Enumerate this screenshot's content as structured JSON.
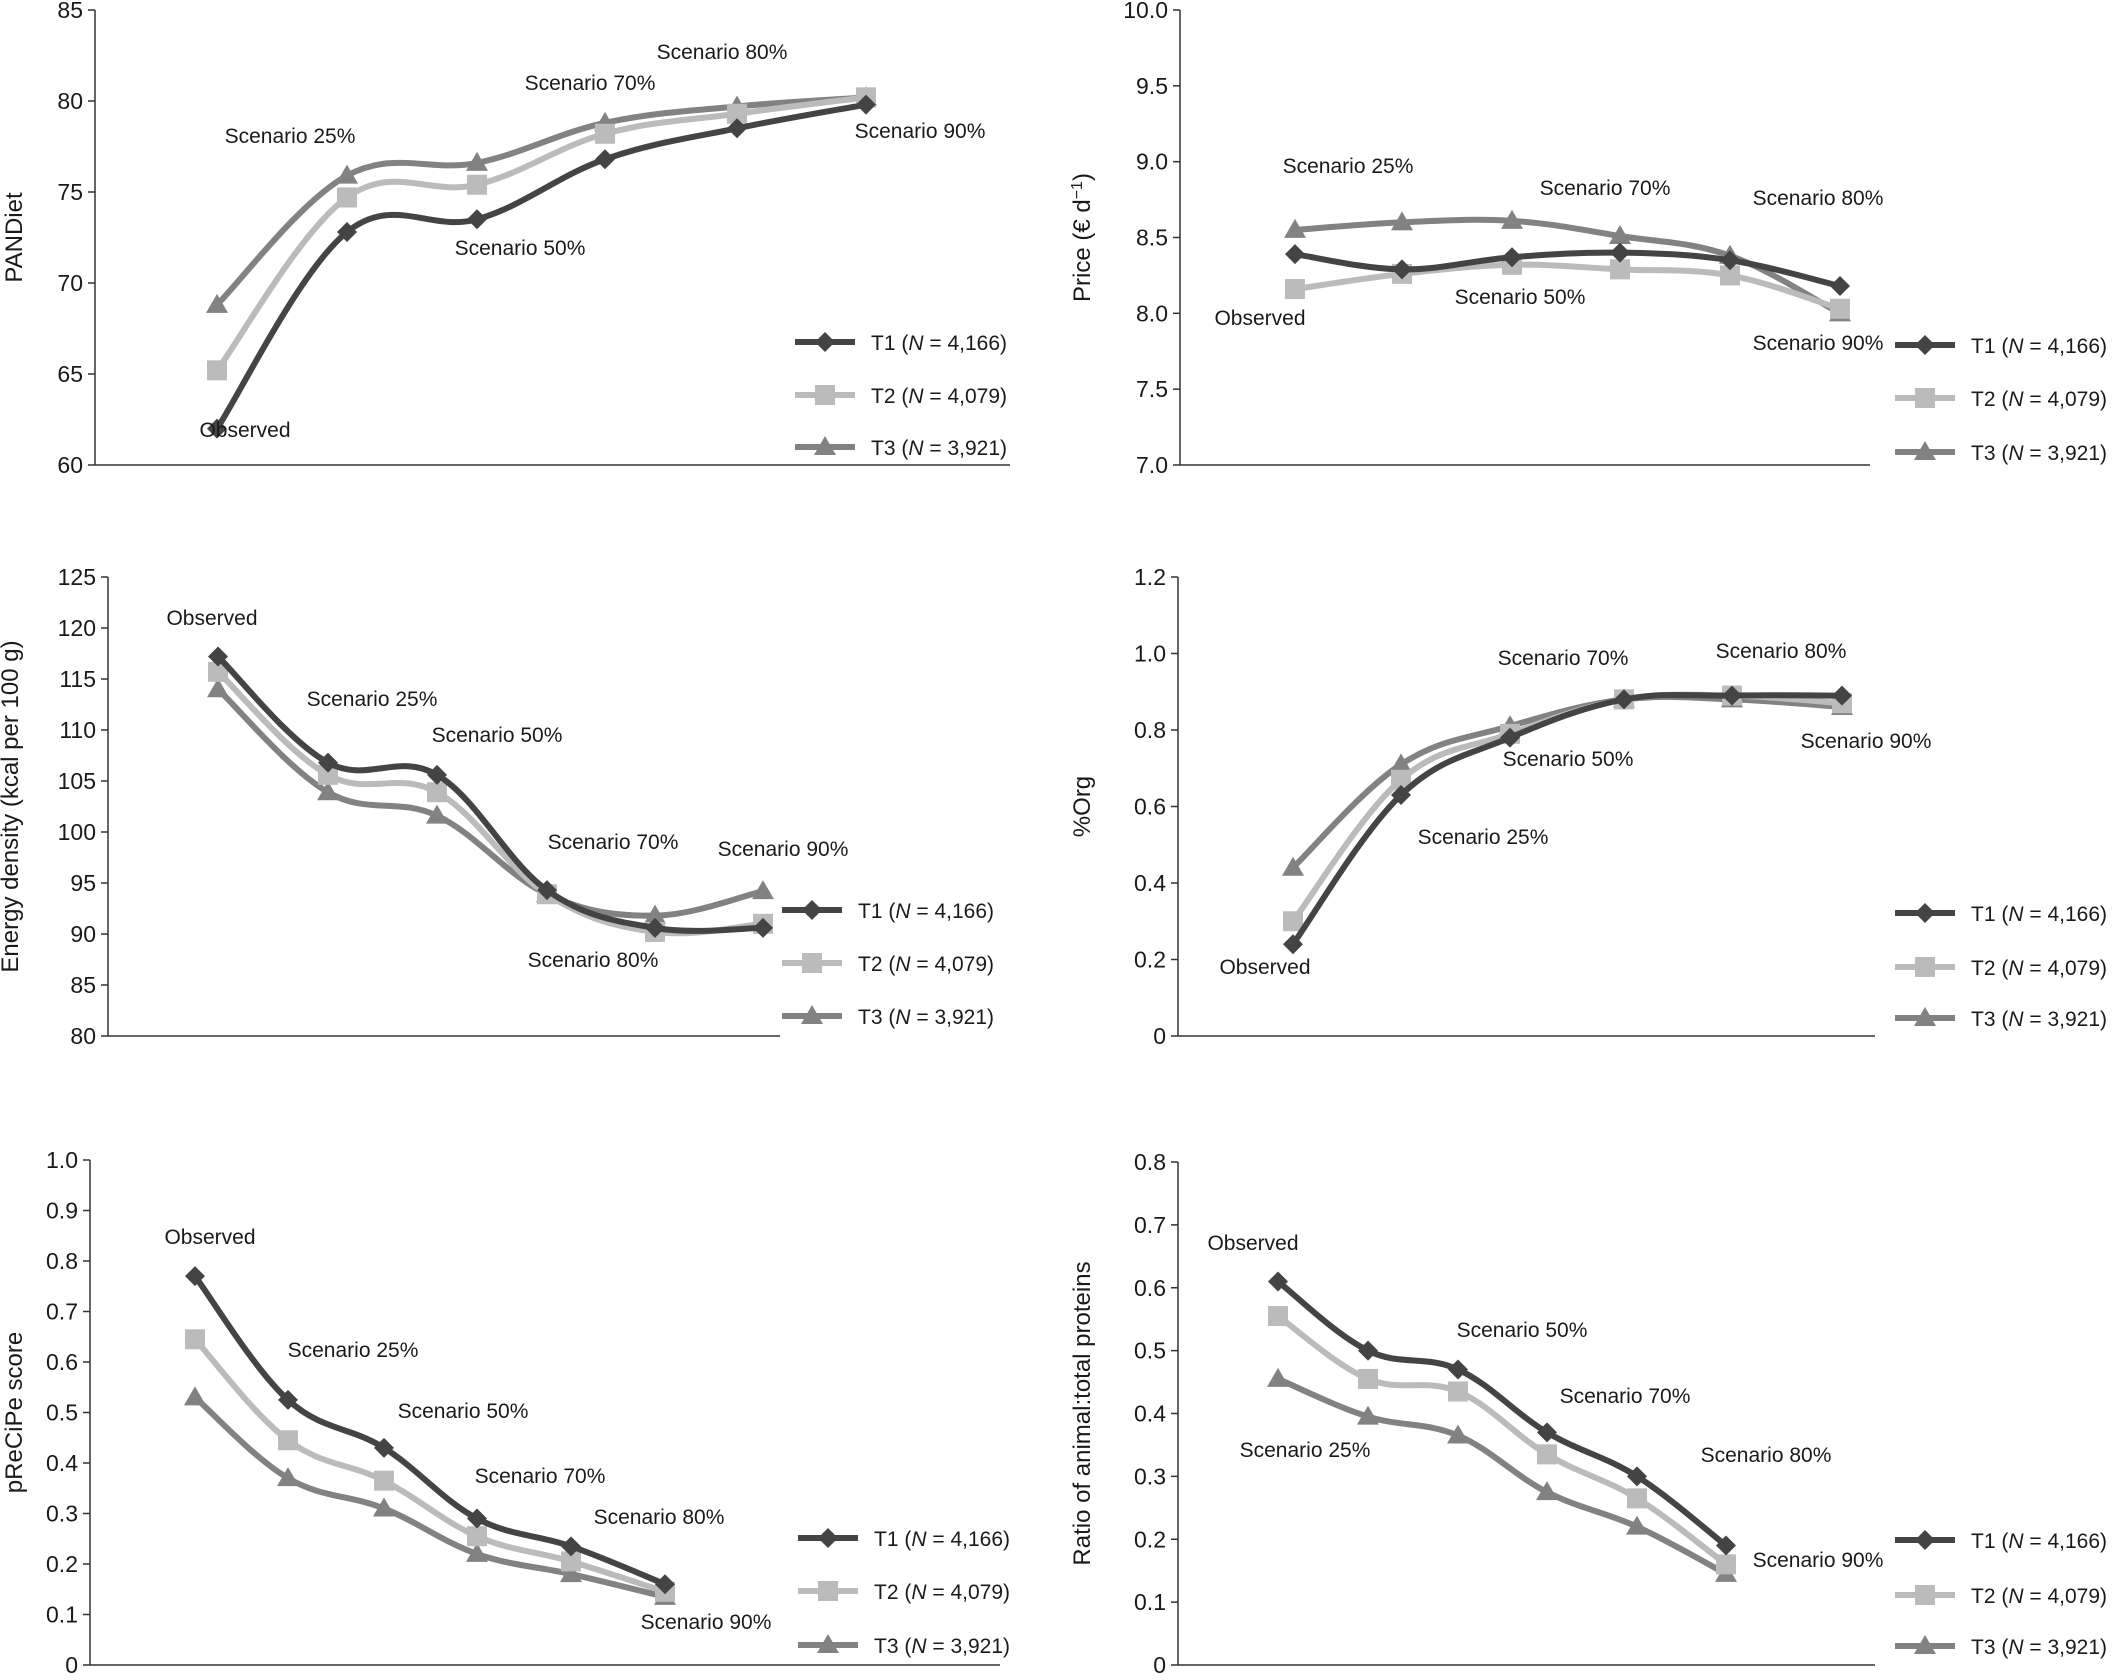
{
  "legend": [
    {
      "label": "T1",
      "n_label": "N",
      "n_value": " = 4,166",
      "color": "#444444",
      "marker": "diamond"
    },
    {
      "label": "T2",
      "n_label": "N",
      "n_value": " = 4,079",
      "color": "#bbbbbb",
      "marker": "square"
    },
    {
      "label": "T3",
      "n_label": "N",
      "n_value": " = 3,921",
      "color": "#828282",
      "marker": "triangle"
    }
  ],
  "chart_data": [
    {
      "type": "line",
      "title": "",
      "xlabel": "",
      "ylabel": "PANDiet",
      "ylim": [
        60,
        85
      ],
      "yticks": [
        60,
        65,
        70,
        75,
        80,
        85
      ],
      "ytick_labels": [
        "60",
        "65",
        "70",
        "75",
        "80",
        "85"
      ],
      "x_count": 7,
      "series": [
        {
          "name": "T1 (N = 4,166)",
          "values": [
            62.0,
            72.8,
            73.5,
            76.8,
            78.5,
            79.8
          ]
        },
        {
          "name": "T2 (N = 4,079)",
          "values": [
            65.2,
            74.7,
            75.4,
            78.2,
            79.3,
            80.2
          ]
        },
        {
          "name": "T3 (N = 3,921)",
          "values": [
            68.8,
            75.9,
            76.6,
            78.8,
            79.7,
            80.2
          ]
        }
      ],
      "annotations": [
        {
          "text": "Observed",
          "x": 1,
          "y": 61.5
        },
        {
          "text": "Scenario 25%",
          "x": 1.7,
          "y": 77.4
        },
        {
          "text": "Scenario 50%",
          "x": 3.9,
          "y": 72.3
        },
        {
          "text": "Scenario 70%",
          "x": 4.85,
          "y": 80.4
        },
        {
          "text": "Scenario 80%",
          "x": 6.1,
          "y": 82.4
        },
        {
          "text": "Scenario 90%",
          "x": 7.4,
          "y": 78.7
        }
      ]
    },
    {
      "type": "line",
      "title": "",
      "xlabel": "",
      "ylabel": "Price (€ d⁻¹)",
      "ylim": [
        7.0,
        10.0
      ],
      "yticks": [
        7.0,
        7.5,
        8.0,
        8.5,
        9.0,
        9.5,
        10.0
      ],
      "ytick_labels": [
        "7.0",
        "7.5",
        "8.0",
        "8.5",
        "9.0",
        "9.5",
        "10.0"
      ],
      "x_count": 6,
      "series": [
        {
          "name": "T1 (N = 4,166)",
          "values": [
            8.39,
            8.29,
            8.37,
            8.4,
            8.35,
            8.18
          ]
        },
        {
          "name": "T2 (N = 4,079)",
          "values": [
            8.16,
            8.26,
            8.32,
            8.29,
            8.25,
            8.03
          ]
        },
        {
          "name": "T3 (N = 3,921)",
          "values": [
            8.55,
            8.6,
            8.61,
            8.51,
            8.38,
            8.0
          ]
        }
      ],
      "annotations": [
        {
          "text": "Observed",
          "x": 1,
          "y": 7.87
        },
        {
          "text": "Scenario 25%",
          "x": 1.5,
          "y": 9.05
        },
        {
          "text": "Scenario 50%",
          "x": 3.0,
          "y": 8.03
        },
        {
          "text": "Scenario 70%",
          "x": 3.9,
          "y": 8.78
        },
        {
          "text": "Scenario 80%",
          "x": 5.8,
          "y": 8.7
        },
        {
          "text": "Scenario 90%",
          "x": 5.8,
          "y": 7.64
        }
      ]
    },
    {
      "type": "line",
      "title": "",
      "xlabel": "",
      "ylabel": "Energy density (kcal per 100 g)",
      "ylim": [
        80,
        125
      ],
      "yticks": [
        80,
        85,
        90,
        95,
        100,
        105,
        110,
        115,
        120,
        125
      ],
      "ytick_labels": [
        "80",
        "85",
        "90",
        "95",
        "100",
        "105",
        "110",
        "115",
        "120",
        "125"
      ],
      "x_count": 6,
      "series": [
        {
          "name": "T1 (N = 4,166)",
          "values": [
            117.2,
            106.8,
            105.6,
            94.3,
            90.6,
            90.6
          ]
        },
        {
          "name": "T2 (N = 4,079)",
          "values": [
            115.7,
            105.6,
            103.9,
            93.9,
            90.2,
            91.0
          ]
        },
        {
          "name": "T3 (N = 3,921)",
          "values": [
            114.0,
            103.9,
            101.6,
            93.9,
            91.8,
            94.2
          ]
        }
      ],
      "annotations": [
        {
          "text": "Observed",
          "x": 1,
          "y": 119.3
        },
        {
          "text": "Scenario 25%",
          "x": 2.5,
          "y": 111.2
        },
        {
          "text": "Scenario 50%",
          "x": 3.6,
          "y": 107.6
        },
        {
          "text": "Scenario 70%",
          "x": 4.7,
          "y": 97.1
        },
        {
          "text": "Scenario 80%",
          "x": 4.7,
          "y": 86.9
        },
        {
          "text": "Scenario 90%",
          "x": 6.2,
          "y": 96.4
        }
      ]
    },
    {
      "type": "line",
      "title": "",
      "xlabel": "",
      "ylabel": "%Org",
      "ylim": [
        0,
        1.2
      ],
      "yticks": [
        0,
        0.2,
        0.4,
        0.6,
        0.8,
        1.0,
        1.2
      ],
      "ytick_labels": [
        "0",
        "0.2",
        "0.4",
        "0.6",
        "0.8",
        "1.0",
        "1.2"
      ],
      "x_count": 6,
      "series": [
        {
          "name": "T1 (N = 4,166)",
          "values": [
            0.24,
            0.63,
            0.78,
            0.88,
            0.89,
            0.89
          ]
        },
        {
          "name": "T2 (N = 4,079)",
          "values": [
            0.3,
            0.67,
            0.79,
            0.88,
            0.89,
            0.87
          ]
        },
        {
          "name": "T3 (N = 3,921)",
          "values": [
            0.44,
            0.71,
            0.81,
            0.88,
            0.88,
            0.86
          ]
        }
      ],
      "annotations": [
        {
          "text": "Observed",
          "x": 1,
          "y": 0.14
        },
        {
          "text": "Scenario 25%",
          "x": 2.2,
          "y": 0.48
        },
        {
          "text": "Scenario 50%",
          "x": 3.4,
          "y": 0.68
        },
        {
          "text": "Scenario 70%",
          "x": 3.5,
          "y": 0.97
        },
        {
          "text": "Scenario 80%",
          "x": 5.8,
          "y": 0.99
        },
        {
          "text": "Scenario 90%",
          "x": 6.2,
          "y": 0.71
        }
      ]
    },
    {
      "type": "line",
      "title": "",
      "xlabel": "",
      "ylabel": "pReCiPe score",
      "ylim": [
        0,
        1.0
      ],
      "yticks": [
        0,
        0.1,
        0.2,
        0.3,
        0.4,
        0.5,
        0.6,
        0.7,
        0.8,
        0.9,
        1.0
      ],
      "ytick_labels": [
        "0",
        "0.1",
        "0.2",
        "0.3",
        "0.4",
        "0.5",
        "0.6",
        "0.7",
        "0.8",
        "0.9",
        "1.0"
      ],
      "x_count": 8,
      "series": [
        {
          "name": "T1 (N = 4,166)",
          "values": [
            0.77,
            0.525,
            0.43,
            0.29,
            0.235,
            0.16
          ]
        },
        {
          "name": "T2 (N = 4,079)",
          "values": [
            0.645,
            0.445,
            0.365,
            0.255,
            0.205,
            0.145
          ]
        },
        {
          "name": "T3 (N = 3,921)",
          "values": [
            0.53,
            0.37,
            0.31,
            0.22,
            0.18,
            0.135
          ]
        }
      ],
      "annotations": [
        {
          "text": "Observed",
          "x": 1,
          "y": 0.82
        },
        {
          "text": "Scenario 25%",
          "x": 2.7,
          "y": 0.61
        },
        {
          "text": "Scenario 50%",
          "x": 3.8,
          "y": 0.48
        },
        {
          "text": "Scenario 70%",
          "x": 4.9,
          "y": 0.35
        },
        {
          "text": "Scenario 80%",
          "x": 6.05,
          "y": 0.27
        },
        {
          "text": "Scenario 90%",
          "x": 6.4,
          "y": 0.06
        }
      ]
    },
    {
      "type": "line",
      "title": "",
      "xlabel": "",
      "ylabel": "Ratio of animal:total proteins",
      "ylim": [
        0,
        0.8
      ],
      "yticks": [
        0,
        0.1,
        0.2,
        0.3,
        0.4,
        0.5,
        0.6,
        0.7,
        0.8
      ],
      "ytick_labels": [
        "0",
        "0.1",
        "0.2",
        "0.3",
        "0.4",
        "0.5",
        "0.6",
        "0.7",
        "0.8"
      ],
      "x_count": 8,
      "series": [
        {
          "name": "T1 (N = 4,166)",
          "values": [
            0.61,
            0.5,
            0.47,
            0.37,
            0.3,
            0.19
          ]
        },
        {
          "name": "T2 (N = 4,079)",
          "values": [
            0.555,
            0.455,
            0.435,
            0.335,
            0.265,
            0.16
          ]
        },
        {
          "name": "T3 (N = 3,921)",
          "values": [
            0.455,
            0.395,
            0.365,
            0.275,
            0.22,
            0.145
          ]
        }
      ],
      "annotations": [
        {
          "text": "Observed",
          "x": 1,
          "y": 0.65
        },
        {
          "text": "Scenario 25%",
          "x": 1.3,
          "y": 0.32
        },
        {
          "text": "Scenario 50%",
          "x": 3.0,
          "y": 0.55
        },
        {
          "text": "Scenario 70%",
          "x": 4.2,
          "y": 0.43
        },
        {
          "text": "Scenario 80%",
          "x": 5.3,
          "y": 0.34
        },
        {
          "text": "Scenario 90%",
          "x": 6.4,
          "y": 0.16
        }
      ]
    }
  ]
}
